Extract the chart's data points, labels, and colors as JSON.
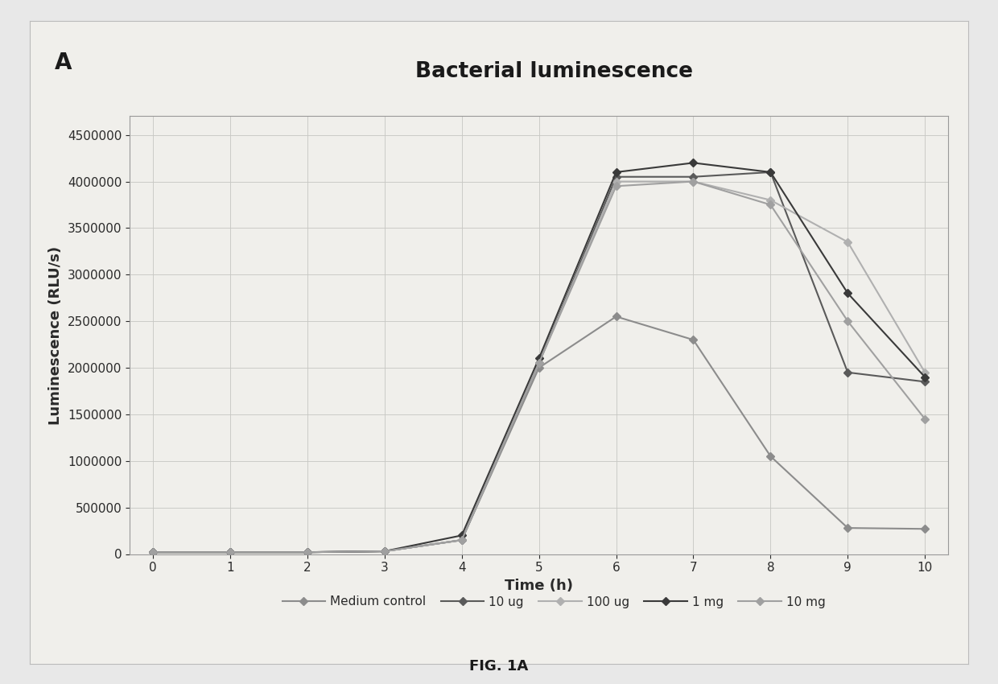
{
  "title": "Bacterial luminescence",
  "label_A": "A",
  "xlabel": "Time (h)",
  "ylabel": "Luminescence (RLU/s)",
  "fig_label": "FIG. 1A",
  "x": [
    0,
    1,
    2,
    3,
    4,
    5,
    6,
    7,
    8,
    9,
    10
  ],
  "series": [
    {
      "label": "Medium control",
      "y": [
        20000,
        20000,
        20000,
        30000,
        150000,
        2000000,
        2550000,
        2300000,
        1050000,
        280000,
        270000
      ],
      "color": "#8c8c8c",
      "linewidth": 1.5,
      "marker": "D",
      "markersize": 5
    },
    {
      "label": "10 ug",
      "y": [
        20000,
        20000,
        20000,
        30000,
        150000,
        2050000,
        4050000,
        4050000,
        4100000,
        1950000,
        1850000
      ],
      "color": "#5a5a5a",
      "linewidth": 1.5,
      "marker": "D",
      "markersize": 5
    },
    {
      "label": "100 ug",
      "y": [
        20000,
        20000,
        20000,
        30000,
        150000,
        2050000,
        4000000,
        4000000,
        3800000,
        3350000,
        1950000
      ],
      "color": "#b0b0b0",
      "linewidth": 1.5,
      "marker": "D",
      "markersize": 5
    },
    {
      "label": "1 mg",
      "y": [
        20000,
        20000,
        20000,
        30000,
        200000,
        2100000,
        4100000,
        4200000,
        4100000,
        2800000,
        1900000
      ],
      "color": "#3a3a3a",
      "linewidth": 1.5,
      "marker": "D",
      "markersize": 5
    },
    {
      "label": "10 mg",
      "y": [
        20000,
        20000,
        20000,
        30000,
        150000,
        2050000,
        3950000,
        4000000,
        3750000,
        2500000,
        1450000
      ],
      "color": "#a0a0a0",
      "linewidth": 1.5,
      "marker": "D",
      "markersize": 5
    }
  ],
  "ylim": [
    0,
    4700000
  ],
  "yticks": [
    0,
    500000,
    1000000,
    1500000,
    2000000,
    2500000,
    3000000,
    3500000,
    4000000,
    4500000
  ],
  "xlim": [
    -0.3,
    10.3
  ],
  "xticks": [
    0,
    1,
    2,
    3,
    4,
    5,
    6,
    7,
    8,
    9,
    10
  ],
  "outer_bg": "#e8e8e8",
  "inner_bg": "#f0efeb",
  "plot_bg_color": "#f0efeb",
  "grid_color": "#c8c8c4",
  "title_fontsize": 19,
  "axis_label_fontsize": 13,
  "tick_fontsize": 11,
  "legend_fontsize": 11
}
